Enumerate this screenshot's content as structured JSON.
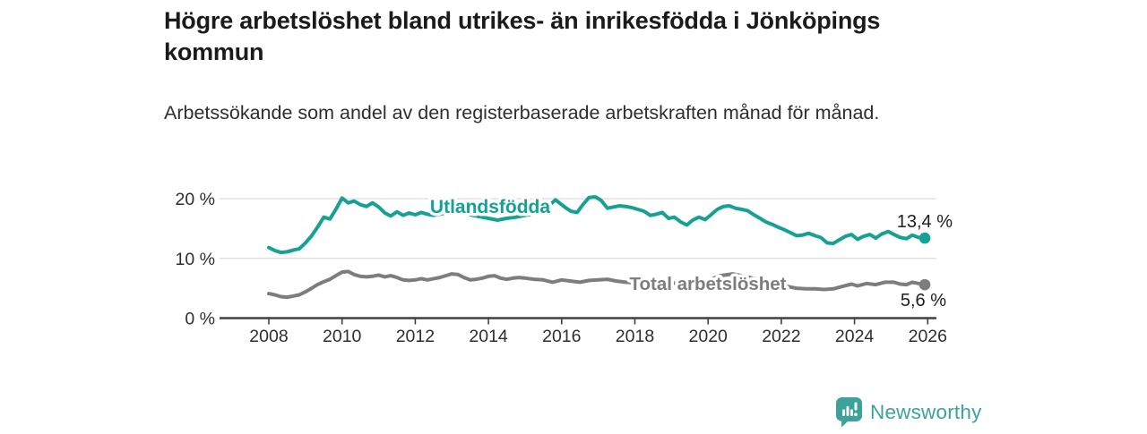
{
  "header": {
    "title": "Högre arbetslöshet bland utrikes- än inrikesfödda i Jönköpings kommun",
    "subtitle": "Arbetssökande som andel av den registerbaserade arbetskraften månad för månad."
  },
  "chart_data": {
    "type": "line",
    "title": "Högre arbetslöshet bland utrikes- än inrikesfödda i Jönköpings kommun",
    "subtitle": "Arbetssökande som andel av den registerbaserade arbetskraften månad för månad.",
    "x_axis": {
      "unit": "year",
      "ticks": [
        2008,
        2010,
        2012,
        2014,
        2016,
        2018,
        2020,
        2022,
        2024,
        2026
      ],
      "tick_labels": [
        "2008",
        "2010",
        "2012",
        "2014",
        "2016",
        "2018",
        "2020",
        "2022",
        "2024",
        "2026"
      ],
      "range": [
        2006.7,
        2026.3
      ]
    },
    "y_axis": {
      "unit": "%",
      "ticks": [
        0,
        10,
        20
      ],
      "tick_labels": [
        "0 %",
        "10 %",
        "20 %"
      ],
      "range": [
        0,
        21.8
      ],
      "grid": true
    },
    "legend": "inline-labels",
    "series": [
      {
        "name": "Utlandsfödda",
        "color": "#16a195",
        "end_label": "13,4 %",
        "end_value": 13.4,
        "points": [
          [
            2008.0,
            11.8
          ],
          [
            2008.17,
            11.3
          ],
          [
            2008.33,
            11.0
          ],
          [
            2008.5,
            11.1
          ],
          [
            2008.67,
            11.4
          ],
          [
            2008.83,
            11.6
          ],
          [
            2009.0,
            12.6
          ],
          [
            2009.17,
            13.8
          ],
          [
            2009.33,
            15.2
          ],
          [
            2009.5,
            16.9
          ],
          [
            2009.67,
            16.6
          ],
          [
            2009.83,
            18.2
          ],
          [
            2010.0,
            20.1
          ],
          [
            2010.17,
            19.3
          ],
          [
            2010.33,
            19.6
          ],
          [
            2010.5,
            19.0
          ],
          [
            2010.67,
            18.7
          ],
          [
            2010.83,
            19.3
          ],
          [
            2011.0,
            18.6
          ],
          [
            2011.17,
            17.6
          ],
          [
            2011.33,
            17.1
          ],
          [
            2011.5,
            17.8
          ],
          [
            2011.67,
            17.2
          ],
          [
            2011.83,
            17.6
          ],
          [
            2012.0,
            17.3
          ],
          [
            2012.17,
            17.7
          ],
          [
            2012.33,
            17.4
          ],
          [
            2012.5,
            17.2
          ],
          [
            2012.67,
            17.4
          ],
          [
            2012.83,
            17.6
          ],
          [
            2013.0,
            17.9
          ],
          [
            2013.25,
            17.6
          ],
          [
            2013.5,
            17.3
          ],
          [
            2013.75,
            17.0
          ],
          [
            2014.0,
            16.7
          ],
          [
            2014.25,
            16.4
          ],
          [
            2014.5,
            16.7
          ],
          [
            2014.75,
            16.9
          ],
          [
            2015.0,
            17.2
          ],
          [
            2015.25,
            17.5
          ],
          [
            2015.5,
            18.2
          ],
          [
            2015.67,
            18.9
          ],
          [
            2015.83,
            19.8
          ],
          [
            2016.08,
            18.6
          ],
          [
            2016.25,
            17.9
          ],
          [
            2016.42,
            17.7
          ],
          [
            2016.58,
            19.0
          ],
          [
            2016.75,
            20.2
          ],
          [
            2016.92,
            20.3
          ],
          [
            2017.08,
            19.7
          ],
          [
            2017.25,
            18.4
          ],
          [
            2017.42,
            18.6
          ],
          [
            2017.58,
            18.8
          ],
          [
            2017.75,
            18.7
          ],
          [
            2017.92,
            18.5
          ],
          [
            2018.08,
            18.2
          ],
          [
            2018.25,
            17.9
          ],
          [
            2018.42,
            17.2
          ],
          [
            2018.58,
            17.4
          ],
          [
            2018.75,
            17.7
          ],
          [
            2018.92,
            16.7
          ],
          [
            2019.08,
            16.9
          ],
          [
            2019.25,
            16.1
          ],
          [
            2019.42,
            15.6
          ],
          [
            2019.58,
            16.4
          ],
          [
            2019.75,
            16.9
          ],
          [
            2019.92,
            16.5
          ],
          [
            2020.08,
            17.3
          ],
          [
            2020.25,
            18.2
          ],
          [
            2020.42,
            18.7
          ],
          [
            2020.58,
            18.8
          ],
          [
            2020.75,
            18.4
          ],
          [
            2020.92,
            18.2
          ],
          [
            2021.08,
            18.0
          ],
          [
            2021.25,
            17.3
          ],
          [
            2021.42,
            16.7
          ],
          [
            2021.58,
            16.1
          ],
          [
            2021.75,
            15.7
          ],
          [
            2021.92,
            15.2
          ],
          [
            2022.08,
            14.8
          ],
          [
            2022.25,
            14.3
          ],
          [
            2022.42,
            13.8
          ],
          [
            2022.58,
            13.9
          ],
          [
            2022.75,
            14.2
          ],
          [
            2022.92,
            13.8
          ],
          [
            2023.08,
            13.5
          ],
          [
            2023.25,
            12.6
          ],
          [
            2023.42,
            12.5
          ],
          [
            2023.58,
            13.1
          ],
          [
            2023.75,
            13.7
          ],
          [
            2023.92,
            14.0
          ],
          [
            2024.08,
            13.2
          ],
          [
            2024.25,
            13.7
          ],
          [
            2024.42,
            14.0
          ],
          [
            2024.58,
            13.4
          ],
          [
            2024.75,
            14.1
          ],
          [
            2024.92,
            14.5
          ],
          [
            2025.08,
            14.0
          ],
          [
            2025.25,
            13.5
          ],
          [
            2025.42,
            13.3
          ],
          [
            2025.58,
            13.9
          ],
          [
            2025.75,
            13.5
          ],
          [
            2025.92,
            13.4
          ]
        ]
      },
      {
        "name": "Total arbetslöshet",
        "color": "#7d7d7d",
        "end_label": "5,6 %",
        "end_value": 5.6,
        "points": [
          [
            2008.0,
            4.1
          ],
          [
            2008.17,
            3.9
          ],
          [
            2008.33,
            3.6
          ],
          [
            2008.5,
            3.5
          ],
          [
            2008.67,
            3.7
          ],
          [
            2008.83,
            3.9
          ],
          [
            2009.0,
            4.4
          ],
          [
            2009.17,
            5.0
          ],
          [
            2009.33,
            5.6
          ],
          [
            2009.5,
            6.1
          ],
          [
            2009.67,
            6.5
          ],
          [
            2009.83,
            7.1
          ],
          [
            2010.0,
            7.7
          ],
          [
            2010.17,
            7.8
          ],
          [
            2010.33,
            7.3
          ],
          [
            2010.5,
            7.0
          ],
          [
            2010.67,
            6.9
          ],
          [
            2010.83,
            7.0
          ],
          [
            2011.0,
            7.2
          ],
          [
            2011.17,
            6.9
          ],
          [
            2011.33,
            7.1
          ],
          [
            2011.5,
            6.8
          ],
          [
            2011.67,
            6.4
          ],
          [
            2011.83,
            6.3
          ],
          [
            2012.0,
            6.4
          ],
          [
            2012.17,
            6.6
          ],
          [
            2012.33,
            6.4
          ],
          [
            2012.5,
            6.6
          ],
          [
            2012.67,
            6.8
          ],
          [
            2012.83,
            7.1
          ],
          [
            2013.0,
            7.4
          ],
          [
            2013.17,
            7.3
          ],
          [
            2013.33,
            6.8
          ],
          [
            2013.5,
            6.4
          ],
          [
            2013.67,
            6.5
          ],
          [
            2013.83,
            6.7
          ],
          [
            2014.0,
            7.0
          ],
          [
            2014.17,
            7.1
          ],
          [
            2014.33,
            6.7
          ],
          [
            2014.5,
            6.5
          ],
          [
            2014.67,
            6.7
          ],
          [
            2014.83,
            6.8
          ],
          [
            2015.0,
            6.7
          ],
          [
            2015.25,
            6.5
          ],
          [
            2015.5,
            6.4
          ],
          [
            2015.75,
            6.0
          ],
          [
            2016.0,
            6.4
          ],
          [
            2016.25,
            6.2
          ],
          [
            2016.5,
            6.0
          ],
          [
            2016.75,
            6.3
          ],
          [
            2017.0,
            6.4
          ],
          [
            2017.25,
            6.5
          ],
          [
            2017.5,
            6.2
          ],
          [
            2017.75,
            6.0
          ],
          [
            2018.0,
            5.9
          ],
          [
            2018.33,
            5.7
          ],
          [
            2018.67,
            5.8
          ],
          [
            2019.0,
            5.9
          ],
          [
            2019.33,
            5.7
          ],
          [
            2019.67,
            6.0
          ],
          [
            2020.0,
            6.3
          ],
          [
            2020.33,
            7.1
          ],
          [
            2020.67,
            7.4
          ],
          [
            2021.0,
            7.0
          ],
          [
            2021.33,
            6.5
          ],
          [
            2021.67,
            6.0
          ],
          [
            2022.0,
            5.6
          ],
          [
            2022.25,
            5.2
          ],
          [
            2022.42,
            5.0
          ],
          [
            2022.67,
            4.9
          ],
          [
            2022.92,
            4.9
          ],
          [
            2023.17,
            4.8
          ],
          [
            2023.42,
            4.9
          ],
          [
            2023.67,
            5.3
          ],
          [
            2023.92,
            5.7
          ],
          [
            2024.08,
            5.4
          ],
          [
            2024.33,
            5.8
          ],
          [
            2024.58,
            5.6
          ],
          [
            2024.83,
            6.0
          ],
          [
            2025.08,
            6.0
          ],
          [
            2025.25,
            5.7
          ],
          [
            2025.42,
            5.6
          ],
          [
            2025.58,
            6.0
          ],
          [
            2025.75,
            5.8
          ],
          [
            2025.92,
            5.6
          ]
        ]
      }
    ]
  },
  "footer": {
    "brand": "Newsworthy",
    "logo_icon": "bar-chart-speech-bubble-icon"
  },
  "colors": {
    "accent_teal": "#16a195",
    "series_gray": "#7d7d7d",
    "brand_teal": "#3ca29a",
    "grid": "#dcdcdc",
    "axis": "#414141",
    "text_dark": "#1b1b1b"
  }
}
